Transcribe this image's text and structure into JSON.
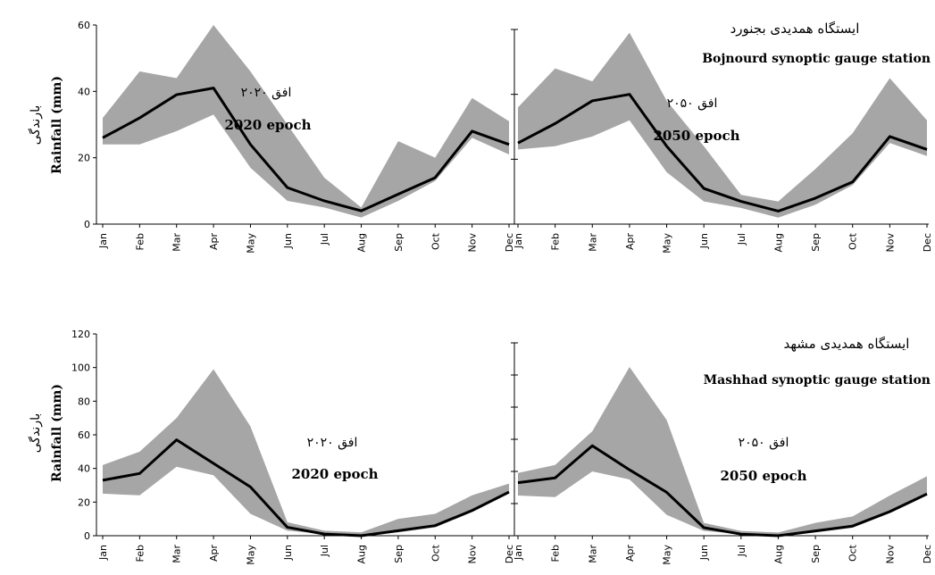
{
  "stations": [
    {
      "fa": "ایستگاه همدیدی بجنورد",
      "en": "Bojnourd synoptic gauge station"
    },
    {
      "fa": "ایستگاه همدیدی مشهد",
      "en": "Mashhad synoptic gauge station"
    }
  ],
  "ylabel": {
    "en": "Rainfall (mm)",
    "fa": "بارندگی"
  },
  "chart_data": [
    {
      "type": "line",
      "panel": "top-left",
      "annotation_fa": "افق ۲۰۲۰",
      "annotation_en": "2020 epoch",
      "categories": [
        "Jan",
        "Feb",
        "Mar",
        "Apr",
        "May",
        "Jun",
        "Jul",
        "Aug",
        "Sep",
        "Oct",
        "Nov",
        "Dec"
      ],
      "ylim": [
        0,
        60
      ],
      "yticks": [
        0,
        20,
        40,
        60
      ],
      "series": [
        {
          "values": [
            26,
            32,
            39,
            41,
            24,
            11,
            7,
            4,
            9,
            14,
            28,
            24
          ]
        }
      ],
      "band_upper": [
        32,
        46,
        44,
        60,
        46,
        30,
        14,
        5,
        25,
        20,
        38,
        31
      ],
      "band_lower": [
        24,
        24,
        28,
        33,
        17,
        7,
        5,
        2,
        7,
        13,
        26,
        21
      ]
    },
    {
      "type": "line",
      "panel": "top-right",
      "annotation_fa": "افق ۲۰۵۰",
      "annotation_en": "2050 epoch",
      "categories": [
        "Jan",
        "Feb",
        "Mar",
        "Apr",
        "May",
        "Jun",
        "Jul",
        "Aug",
        "Sep",
        "Oct",
        "Nov",
        "Dec"
      ],
      "ylim": [
        0,
        60
      ],
      "yticks": [
        0,
        20,
        40,
        60
      ],
      "series": [
        {
          "values": [
            25,
            31,
            38,
            40,
            24,
            11,
            7,
            4,
            8,
            13,
            27,
            23
          ]
        }
      ],
      "band_upper": [
        36,
        48,
        44,
        59,
        38,
        24,
        9,
        7,
        17,
        28,
        45,
        32
      ],
      "band_lower": [
        23,
        24,
        27,
        32,
        16,
        7,
        5,
        2,
        6,
        12,
        25,
        21
      ]
    },
    {
      "type": "line",
      "panel": "bottom-left",
      "annotation_fa": "افق ۲۰۲۰",
      "annotation_en": "2020 epoch",
      "categories": [
        "Jan",
        "Feb",
        "Mar",
        "Apr",
        "May",
        "Jun",
        "Jul",
        "Aug",
        "Sep",
        "Oct",
        "Nov",
        "Dec"
      ],
      "ylim": [
        0,
        120
      ],
      "yticks": [
        0,
        20,
        40,
        60,
        80,
        100,
        120
      ],
      "series": [
        {
          "values": [
            33,
            37,
            57,
            43,
            29,
            5,
            1,
            0,
            3,
            6,
            15,
            26
          ]
        }
      ],
      "band_upper": [
        42,
        50,
        70,
        99,
        65,
        8,
        3,
        2,
        10,
        13,
        24,
        31
      ],
      "band_lower": [
        25,
        24,
        41,
        36,
        13,
        3,
        1,
        0,
        2,
        5,
        14,
        25
      ]
    },
    {
      "type": "line",
      "panel": "bottom-right",
      "annotation_fa": "افق ۲۰۵۰",
      "annotation_en": "2050 epoch",
      "categories": [
        "Jan",
        "Feb",
        "Mar",
        "Apr",
        "May",
        "Jun",
        "Jul",
        "Aug",
        "Sep",
        "Oct",
        "Nov",
        "Dec"
      ],
      "ylim": [
        0,
        120
      ],
      "yticks": [
        0,
        20,
        40,
        60,
        80,
        100,
        120
      ],
      "series": [
        {
          "values": [
            33,
            36,
            56,
            41,
            27,
            5,
            1,
            0,
            3,
            6,
            15,
            26
          ]
        }
      ],
      "band_upper": [
        39,
        44,
        65,
        105,
        72,
        8,
        3,
        2,
        8,
        12,
        25,
        37
      ],
      "band_lower": [
        25,
        24,
        40,
        35,
        13,
        3,
        1,
        0,
        2,
        5,
        14,
        25
      ]
    }
  ]
}
